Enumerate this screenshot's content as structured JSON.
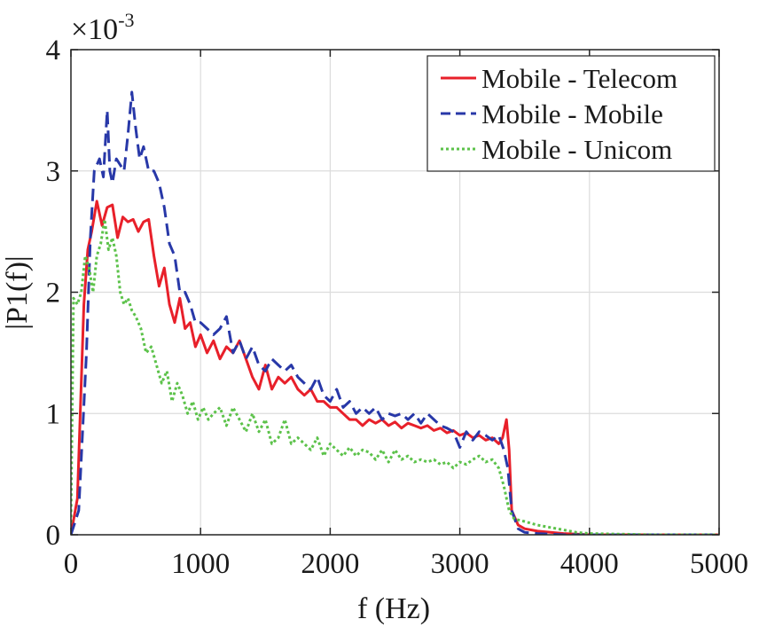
{
  "chart_data": {
    "type": "line",
    "title": "",
    "xlabel": "f (Hz)",
    "ylabel": "|P1(f)|",
    "xlim": [
      0,
      5000
    ],
    "ylim": [
      0,
      4
    ],
    "xticks": [
      0,
      1000,
      2000,
      3000,
      4000,
      5000
    ],
    "yticks": [
      0,
      1,
      2,
      3,
      4
    ],
    "xtick_labels": [
      "0",
      "1000",
      "2000",
      "3000",
      "4000",
      "5000"
    ],
    "ytick_labels": [
      "0",
      "1",
      "2",
      "3",
      "4"
    ],
    "y_multiplier": {
      "base": "×10",
      "exponent": "-3"
    },
    "grid": true,
    "legend_position": "top-right",
    "series": [
      {
        "name": "Mobile - Telecom",
        "color": "#e8202a",
        "style": "solid",
        "x": [
          0,
          50,
          100,
          130,
          160,
          200,
          240,
          280,
          320,
          360,
          400,
          440,
          480,
          520,
          560,
          600,
          640,
          680,
          720,
          760,
          800,
          840,
          880,
          920,
          960,
          1000,
          1050,
          1100,
          1150,
          1200,
          1250,
          1300,
          1350,
          1400,
          1450,
          1500,
          1550,
          1600,
          1650,
          1700,
          1750,
          1800,
          1850,
          1900,
          1950,
          2000,
          2050,
          2100,
          2150,
          2200,
          2250,
          2300,
          2350,
          2400,
          2450,
          2500,
          2550,
          2600,
          2650,
          2700,
          2750,
          2800,
          2850,
          2900,
          2950,
          3000,
          3050,
          3100,
          3150,
          3200,
          3250,
          3300,
          3330,
          3360,
          3380,
          3400,
          3450,
          3500,
          3600,
          3700,
          3800,
          3900,
          4000,
          4500,
          5000
        ],
        "values": [
          0.0,
          0.3,
          1.9,
          2.35,
          2.5,
          2.75,
          2.55,
          2.7,
          2.72,
          2.45,
          2.62,
          2.58,
          2.6,
          2.5,
          2.58,
          2.6,
          2.3,
          2.05,
          2.2,
          1.9,
          1.75,
          1.95,
          1.7,
          1.75,
          1.55,
          1.65,
          1.5,
          1.6,
          1.45,
          1.55,
          1.5,
          1.6,
          1.45,
          1.3,
          1.2,
          1.4,
          1.2,
          1.3,
          1.25,
          1.3,
          1.2,
          1.15,
          1.2,
          1.1,
          1.1,
          1.05,
          1.05,
          1.0,
          0.95,
          0.95,
          0.9,
          0.95,
          0.92,
          0.95,
          0.9,
          0.93,
          0.88,
          0.92,
          0.9,
          0.88,
          0.9,
          0.86,
          0.88,
          0.84,
          0.86,
          0.82,
          0.84,
          0.8,
          0.82,
          0.78,
          0.8,
          0.75,
          0.8,
          0.95,
          0.7,
          0.2,
          0.08,
          0.05,
          0.03,
          0.02,
          0.01,
          0.005,
          0.0,
          0.0,
          0.0
        ]
      },
      {
        "name": "Mobile - Mobile",
        "color": "#2838a8",
        "style": "dashed",
        "x": [
          0,
          60,
          120,
          150,
          180,
          220,
          250,
          280,
          300,
          320,
          350,
          380,
          410,
          440,
          470,
          500,
          530,
          560,
          600,
          640,
          680,
          720,
          760,
          800,
          840,
          880,
          920,
          960,
          1000,
          1050,
          1100,
          1150,
          1200,
          1250,
          1300,
          1350,
          1400,
          1450,
          1500,
          1550,
          1600,
          1650,
          1700,
          1750,
          1800,
          1850,
          1900,
          1950,
          2000,
          2050,
          2100,
          2150,
          2200,
          2250,
          2300,
          2350,
          2400,
          2450,
          2500,
          2550,
          2600,
          2650,
          2700,
          2750,
          2800,
          2850,
          2900,
          2950,
          3000,
          3050,
          3100,
          3150,
          3200,
          3250,
          3300,
          3340,
          3370,
          3400,
          3450,
          3500,
          3600,
          3700,
          3800,
          4000,
          4500,
          5000
        ],
        "values": [
          0.0,
          0.2,
          1.5,
          2.45,
          3.0,
          3.1,
          2.95,
          3.5,
          3.0,
          2.9,
          3.1,
          3.05,
          3.0,
          3.3,
          3.65,
          3.35,
          3.1,
          3.2,
          3.0,
          3.0,
          2.9,
          2.7,
          2.4,
          2.3,
          2.0,
          2.0,
          1.9,
          1.75,
          1.75,
          1.7,
          1.65,
          1.7,
          1.8,
          1.5,
          1.6,
          1.45,
          1.55,
          1.4,
          1.35,
          1.45,
          1.4,
          1.35,
          1.4,
          1.3,
          1.25,
          1.2,
          1.3,
          1.15,
          1.1,
          1.2,
          1.05,
          1.1,
          1.0,
          1.05,
          1.0,
          1.05,
          0.95,
          1.0,
          0.98,
          1.0,
          0.95,
          1.0,
          0.92,
          1.0,
          0.95,
          0.9,
          0.88,
          0.85,
          0.72,
          0.85,
          0.78,
          0.85,
          0.82,
          0.78,
          0.82,
          0.7,
          0.55,
          0.2,
          0.05,
          0.02,
          0.01,
          0.005,
          0.0,
          0.0,
          0.0,
          0.0
        ]
      },
      {
        "name": "Mobile - Unicom",
        "color": "#5cc24a",
        "style": "dotted",
        "x": [
          0,
          20,
          50,
          80,
          110,
          140,
          170,
          200,
          230,
          260,
          290,
          320,
          350,
          380,
          410,
          440,
          470,
          500,
          540,
          580,
          620,
          660,
          700,
          740,
          780,
          820,
          860,
          900,
          940,
          980,
          1020,
          1060,
          1100,
          1150,
          1200,
          1250,
          1300,
          1350,
          1400,
          1450,
          1500,
          1550,
          1600,
          1650,
          1700,
          1750,
          1800,
          1850,
          1900,
          1950,
          2000,
          2050,
          2100,
          2150,
          2200,
          2250,
          2300,
          2350,
          2400,
          2450,
          2500,
          2550,
          2600,
          2650,
          2700,
          2750,
          2800,
          2850,
          2900,
          2950,
          3000,
          3050,
          3100,
          3150,
          3200,
          3250,
          3300,
          3340,
          3380,
          3420,
          3460,
          3500,
          3600,
          3700,
          3800,
          3900,
          4000,
          4500,
          5000
        ],
        "values": [
          0.1,
          1.95,
          1.9,
          2.0,
          2.3,
          2.2,
          2.0,
          2.3,
          2.4,
          2.6,
          2.35,
          2.45,
          2.3,
          2.0,
          1.9,
          1.95,
          1.85,
          1.8,
          1.7,
          1.5,
          1.55,
          1.4,
          1.25,
          1.35,
          1.1,
          1.25,
          1.15,
          1.0,
          1.1,
          0.95,
          1.05,
          0.95,
          1.0,
          1.05,
          0.9,
          1.05,
          0.95,
          0.85,
          1.0,
          0.85,
          0.95,
          0.75,
          0.8,
          0.95,
          0.75,
          0.8,
          0.75,
          0.7,
          0.8,
          0.65,
          0.75,
          0.7,
          0.65,
          0.72,
          0.65,
          0.7,
          0.68,
          0.62,
          0.7,
          0.6,
          0.7,
          0.62,
          0.65,
          0.6,
          0.62,
          0.6,
          0.62,
          0.58,
          0.6,
          0.55,
          0.6,
          0.58,
          0.62,
          0.65,
          0.6,
          0.62,
          0.55,
          0.4,
          0.2,
          0.13,
          0.12,
          0.11,
          0.08,
          0.06,
          0.04,
          0.02,
          0.01,
          0.0,
          0.0
        ]
      }
    ]
  }
}
